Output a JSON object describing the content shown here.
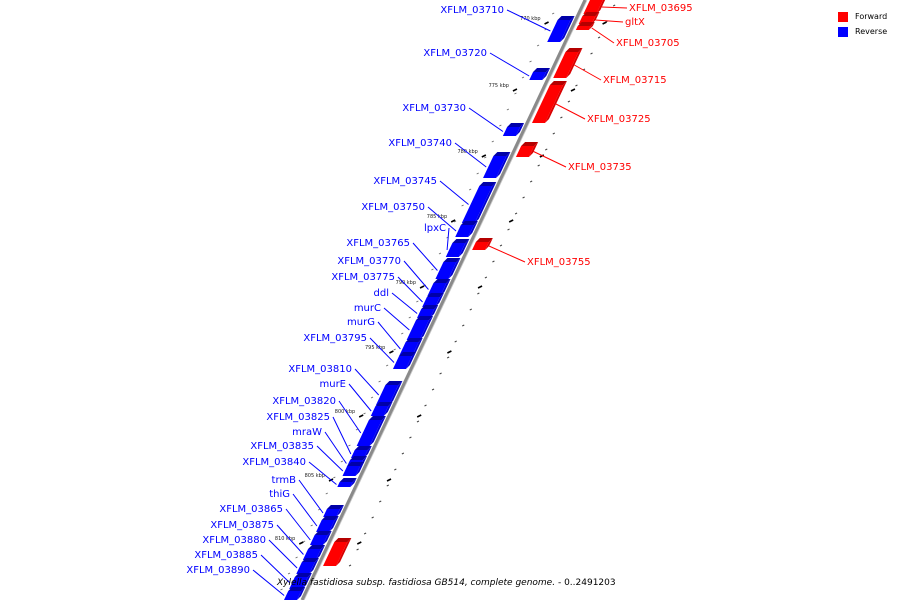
{
  "caption": {
    "organism": "Xylella fastidiosa subsp. fastidiosa GB514, complete genome.",
    "range": " - 0..2491203"
  },
  "legend": [
    {
      "label": "Forward",
      "color": "#ff0000"
    },
    {
      "label": "Reverse",
      "color": "#0000ff"
    }
  ],
  "colors": {
    "forward": "#ff0000",
    "forward_dark": "#b40000",
    "forward_side": "#d80000",
    "reverse": "#0000ff",
    "reverse_dark": "#0000a8",
    "reverse_side": "#0000d0",
    "backbone": "#8a8a8a",
    "tick": "#000000"
  },
  "ticks": [
    "770 kbp",
    "775 kbp",
    "780 kbp",
    "785 kbp",
    "790 kbp",
    "795 kbp",
    "800 kbp",
    "805 kbp",
    "810 kbp"
  ],
  "genes": [
    {
      "name": "XFLM_03695",
      "strand": "forward"
    },
    {
      "name": "gltX",
      "strand": "forward"
    },
    {
      "name": "XFLM_03705",
      "strand": "forward"
    },
    {
      "name": "XFLM_03710",
      "strand": "reverse"
    },
    {
      "name": "XFLM_03715",
      "strand": "forward"
    },
    {
      "name": "XFLM_03720",
      "strand": "reverse"
    },
    {
      "name": "XFLM_03725",
      "strand": "forward"
    },
    {
      "name": "XFLM_03730",
      "strand": "reverse"
    },
    {
      "name": "XFLM_03735",
      "strand": "forward"
    },
    {
      "name": "XFLM_03740",
      "strand": "reverse"
    },
    {
      "name": "XFLM_03745",
      "strand": "reverse"
    },
    {
      "name": "XFLM_03750",
      "strand": "reverse"
    },
    {
      "name": "lpxC",
      "strand": "reverse"
    },
    {
      "name": "XFLM_03755",
      "strand": "forward"
    },
    {
      "name": "XFLM_03765",
      "strand": "reverse"
    },
    {
      "name": "XFLM_03770",
      "strand": "reverse"
    },
    {
      "name": "XFLM_03775",
      "strand": "reverse"
    },
    {
      "name": "ddl",
      "strand": "reverse"
    },
    {
      "name": "murC",
      "strand": "reverse"
    },
    {
      "name": "murG",
      "strand": "reverse"
    },
    {
      "name": "XFLM_03795",
      "strand": "reverse"
    },
    {
      "name": "XFLM_03810",
      "strand": "reverse"
    },
    {
      "name": "murE",
      "strand": "reverse"
    },
    {
      "name": "XFLM_03820",
      "strand": "reverse"
    },
    {
      "name": "XFLM_03825",
      "strand": "reverse"
    },
    {
      "name": "mraW",
      "strand": "reverse"
    },
    {
      "name": "XFLM_03835",
      "strand": "reverse"
    },
    {
      "name": "XFLM_03840",
      "strand": "reverse"
    },
    {
      "name": "trmB",
      "strand": "reverse"
    },
    {
      "name": "thiG",
      "strand": "reverse"
    },
    {
      "name": "XFLM_03865",
      "strand": "reverse"
    },
    {
      "name": "XFLM_03875",
      "strand": "reverse"
    },
    {
      "name": "XFLM_03880",
      "strand": "reverse"
    },
    {
      "name": "XFLM_03885",
      "strand": "reverse"
    },
    {
      "name": "XFLM_03890",
      "strand": "reverse"
    }
  ]
}
